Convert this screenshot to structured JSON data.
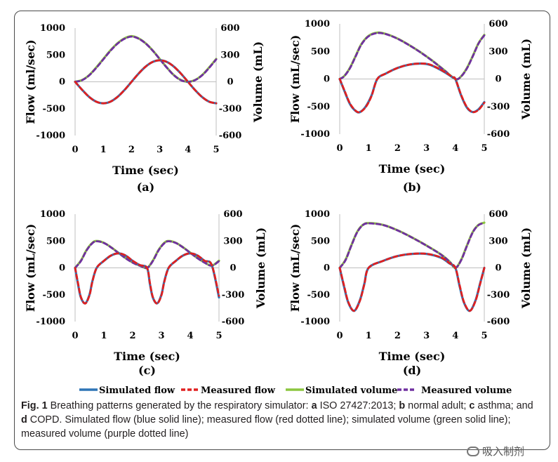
{
  "legend": [
    {
      "name": "Simulated flow",
      "color": "#2e75b6",
      "dash": false
    },
    {
      "name": "Measured flow",
      "color": "#e02020",
      "dash": true
    },
    {
      "name": "Simulated volume",
      "color": "#8cc63f",
      "dash": false
    },
    {
      "name": "Measured volume",
      "color": "#7030a0",
      "dash": true
    }
  ],
  "caption": {
    "fig": "Fig. 1",
    "t1": "Breathing patterns generated by the respiratory simulator: ",
    "a": "a",
    "t2": " ISO 27427:2013; ",
    "b": "b",
    "t3": " normal adult; ",
    "c": "c",
    "t4": " asthma; and ",
    "d": "d",
    "t5": " COPD. Simulated flow (blue solid line); measured flow (red dotted line); simulated volume (green solid line); measured volume (purple dotted line)"
  },
  "watermark": "吸入制剂",
  "chart_data": [
    {
      "type": "line",
      "panel": "(a)",
      "xlabel": "Time (sec)",
      "ylabel": "Flow (ml/sec)",
      "y2label": "Volume (mL)",
      "xlim": [
        0,
        5
      ],
      "ylim": [
        -1000,
        1000
      ],
      "y2lim": [
        -600,
        600
      ],
      "xticks": [
        "0",
        "1",
        "2",
        "3",
        "4",
        "5"
      ],
      "yticks": [
        "-1000",
        "-500",
        "0",
        "500",
        "1000"
      ],
      "y2ticks": [
        "-600",
        "-300",
        "0",
        "300",
        "600"
      ],
      "series": [
        {
          "name": "Simulated flow",
          "axis": "y",
          "x": [
            0,
            0.25,
            0.5,
            0.75,
            1,
            1.25,
            1.5,
            1.75,
            2,
            2.25,
            2.5,
            2.75,
            3,
            3.25,
            3.5,
            3.75,
            4,
            4.25,
            4.5,
            4.75,
            5
          ],
          "values": [
            0,
            -150,
            -283,
            -370,
            -400,
            -370,
            -283,
            -153,
            0,
            153,
            283,
            370,
            400,
            370,
            283,
            153,
            0,
            -153,
            -283,
            -370,
            -400
          ]
        },
        {
          "name": "Measured flow",
          "axis": "y",
          "x": [
            0,
            0.25,
            0.5,
            0.75,
            1,
            1.25,
            1.5,
            1.75,
            2,
            2.25,
            2.5,
            2.75,
            3,
            3.25,
            3.5,
            3.75,
            4,
            4.25,
            4.5,
            4.75,
            5
          ],
          "values": [
            0,
            -150,
            -283,
            -370,
            -400,
            -370,
            -283,
            -153,
            0,
            153,
            283,
            370,
            400,
            370,
            283,
            153,
            0,
            -153,
            -283,
            -370,
            -400
          ]
        },
        {
          "name": "Simulated volume",
          "axis": "y2",
          "x": [
            0,
            0.25,
            0.5,
            0.75,
            1,
            1.25,
            1.5,
            1.75,
            2,
            2.25,
            2.5,
            2.75,
            3,
            3.25,
            3.5,
            3.75,
            4,
            4.25,
            4.5,
            4.75,
            5
          ],
          "values": [
            0,
            20,
            75,
            160,
            255,
            350,
            430,
            485,
            510,
            485,
            430,
            350,
            255,
            160,
            75,
            20,
            0,
            20,
            75,
            160,
            255
          ]
        },
        {
          "name": "Measured volume",
          "axis": "y2",
          "x": [
            0,
            0.25,
            0.5,
            0.75,
            1,
            1.25,
            1.5,
            1.75,
            2,
            2.25,
            2.5,
            2.75,
            3,
            3.25,
            3.5,
            3.75,
            4,
            4.25,
            4.5,
            4.75,
            5
          ],
          "values": [
            0,
            18,
            72,
            155,
            250,
            345,
            425,
            480,
            505,
            482,
            428,
            348,
            253,
            158,
            73,
            18,
            0,
            18,
            72,
            155,
            250
          ]
        }
      ]
    },
    {
      "type": "line",
      "panel": "(b)",
      "xlabel": "Time (sec)",
      "ylabel": "Flow (mL/sec)",
      "y2label": "Volume (mL)",
      "xlim": [
        0,
        5
      ],
      "ylim": [
        -1000,
        1000
      ],
      "y2lim": [
        -600,
        600
      ],
      "xticks": [
        "0",
        "1",
        "2",
        "3",
        "4",
        "5"
      ],
      "yticks": [
        "-1000",
        "-500",
        "0",
        "500",
        "1000"
      ],
      "y2ticks": [
        "-600",
        "-300",
        "0",
        "300",
        "600"
      ],
      "series": [
        {
          "name": "Simulated flow",
          "axis": "y",
          "x": [
            0,
            0.15,
            0.35,
            0.55,
            0.7,
            0.9,
            1.1,
            1.3,
            1.6,
            2,
            2.4,
            2.8,
            3.1,
            3.4,
            3.7,
            3.9,
            4,
            4.2,
            4.4,
            4.6,
            4.8,
            5
          ],
          "values": [
            0,
            -200,
            -450,
            -580,
            -600,
            -500,
            -300,
            0,
            100,
            200,
            260,
            280,
            260,
            190,
            100,
            30,
            0,
            -300,
            -520,
            -600,
            -550,
            -420
          ]
        },
        {
          "name": "Measured flow",
          "axis": "y",
          "x": [
            0,
            0.15,
            0.35,
            0.55,
            0.7,
            0.9,
            1.1,
            1.3,
            1.6,
            2,
            2.4,
            2.8,
            3.1,
            3.4,
            3.7,
            3.9,
            4,
            4.2,
            4.4,
            4.6,
            4.8,
            5
          ],
          "values": [
            0,
            -190,
            -440,
            -575,
            -600,
            -510,
            -310,
            0,
            100,
            200,
            260,
            280,
            265,
            195,
            105,
            35,
            0,
            -290,
            -510,
            -600,
            -560,
            -430
          ]
        },
        {
          "name": "Simulated volume",
          "axis": "y2",
          "x": [
            0,
            0.15,
            0.35,
            0.55,
            0.75,
            1,
            1.3,
            1.6,
            2,
            2.4,
            2.8,
            3.2,
            3.6,
            4,
            4.2,
            4.4,
            4.6,
            4.8,
            5
          ],
          "values": [
            0,
            30,
            120,
            250,
            380,
            470,
            505,
            490,
            440,
            370,
            290,
            200,
            100,
            0,
            30,
            120,
            250,
            390,
            480
          ]
        },
        {
          "name": "Measured volume",
          "axis": "y2",
          "x": [
            0,
            0.15,
            0.35,
            0.55,
            0.75,
            1,
            1.3,
            1.6,
            2,
            2.4,
            2.8,
            3.2,
            3.6,
            4,
            4.2,
            4.4,
            4.6,
            4.8,
            5
          ],
          "values": [
            0,
            28,
            115,
            245,
            375,
            465,
            500,
            488,
            438,
            368,
            288,
            198,
            98,
            0,
            28,
            115,
            245,
            385,
            475
          ]
        }
      ]
    },
    {
      "type": "line",
      "panel": "(c)",
      "xlabel": "Time (sec)",
      "ylabel": "Flow (mL/sec)",
      "y2label": "Volume (mL)",
      "xlim": [
        0,
        5
      ],
      "ylim": [
        -1000,
        1000
      ],
      "y2lim": [
        -600,
        600
      ],
      "xticks": [
        "0",
        "1",
        "2",
        "3",
        "4",
        "5"
      ],
      "yticks": [
        "-1000",
        "-500",
        "0",
        "500",
        "1000"
      ],
      "y2ticks": [
        "-600",
        "-300",
        "0",
        "300",
        "600"
      ],
      "series": [
        {
          "name": "Simulated flow",
          "axis": "y",
          "x": [
            0,
            0.1,
            0.2,
            0.35,
            0.5,
            0.6,
            0.75,
            1,
            1.25,
            1.5,
            1.75,
            2,
            2.25,
            2.5,
            2.6,
            2.7,
            2.85,
            3,
            3.1,
            3.25,
            3.5,
            3.75,
            4,
            4.25,
            4.5,
            4.75,
            5
          ],
          "values": [
            0,
            -300,
            -550,
            -660,
            -500,
            -250,
            0,
            130,
            230,
            270,
            230,
            130,
            50,
            0,
            -300,
            -550,
            -660,
            -500,
            -250,
            0,
            130,
            230,
            270,
            230,
            130,
            50,
            -550
          ]
        },
        {
          "name": "Measured flow",
          "axis": "y",
          "x": [
            0,
            0.1,
            0.2,
            0.35,
            0.5,
            0.6,
            0.75,
            1,
            1.25,
            1.5,
            1.75,
            2,
            2.25,
            2.5,
            2.6,
            2.7,
            2.85,
            3,
            3.1,
            3.25,
            3.5,
            3.75,
            4,
            4.25,
            4.5,
            4.75,
            5
          ],
          "values": [
            0,
            -280,
            -540,
            -665,
            -510,
            -260,
            0,
            130,
            230,
            270,
            232,
            132,
            52,
            0,
            -280,
            -540,
            -665,
            -510,
            -260,
            0,
            130,
            230,
            270,
            232,
            132,
            52,
            -520
          ]
        },
        {
          "name": "Simulated volume",
          "axis": "y2",
          "x": [
            0,
            0.2,
            0.4,
            0.6,
            0.75,
            1,
            1.25,
            1.5,
            1.75,
            2,
            2.25,
            2.5,
            2.7,
            2.9,
            3.1,
            3.25,
            3.5,
            3.75,
            4,
            4.25,
            4.5,
            4.75,
            5
          ],
          "values": [
            0,
            80,
            200,
            280,
            300,
            280,
            230,
            170,
            110,
            60,
            25,
            0,
            80,
            200,
            280,
            300,
            280,
            230,
            170,
            110,
            60,
            25,
            80
          ]
        },
        {
          "name": "Measured volume",
          "axis": "y2",
          "x": [
            0,
            0.2,
            0.4,
            0.6,
            0.75,
            1,
            1.25,
            1.5,
            1.75,
            2,
            2.25,
            2.5,
            2.7,
            2.9,
            3.1,
            3.25,
            3.5,
            3.75,
            4,
            4.25,
            4.5,
            4.75,
            5
          ],
          "values": [
            0,
            75,
            195,
            275,
            297,
            278,
            228,
            168,
            108,
            58,
            23,
            0,
            75,
            195,
            275,
            297,
            278,
            228,
            168,
            108,
            58,
            23,
            75
          ]
        }
      ]
    },
    {
      "type": "line",
      "panel": "(d)",
      "xlabel": "Time (sec)",
      "ylabel": "Flow (mL/sec)",
      "y2label": "Volume (mL)",
      "xlim": [
        0,
        5
      ],
      "ylim": [
        -1000,
        1000
      ],
      "y2lim": [
        -600,
        600
      ],
      "xticks": [
        "0",
        "1",
        "2",
        "3",
        "4",
        "5"
      ],
      "yticks": [
        "-1000",
        "-500",
        "0",
        "500",
        "1000"
      ],
      "y2ticks": [
        "-600",
        "-300",
        "0",
        "300",
        "600"
      ],
      "series": [
        {
          "name": "Simulated flow",
          "axis": "y",
          "x": [
            0,
            0.15,
            0.3,
            0.5,
            0.7,
            0.85,
            1,
            1.5,
            2,
            2.5,
            3,
            3.5,
            3.8,
            4,
            4.15,
            4.3,
            4.5,
            4.7,
            4.85,
            5
          ],
          "values": [
            0,
            -350,
            -650,
            -800,
            -600,
            -300,
            0,
            130,
            220,
            260,
            260,
            190,
            80,
            0,
            -350,
            -650,
            -800,
            -600,
            -300,
            0
          ]
        },
        {
          "name": "Measured flow",
          "axis": "y",
          "x": [
            0,
            0.15,
            0.3,
            0.5,
            0.7,
            0.85,
            1,
            1.5,
            2,
            2.5,
            3,
            3.5,
            3.8,
            4,
            4.15,
            4.3,
            4.5,
            4.7,
            4.85,
            5
          ],
          "values": [
            0,
            -330,
            -640,
            -800,
            -610,
            -310,
            0,
            130,
            220,
            260,
            262,
            195,
            85,
            0,
            -330,
            -640,
            -800,
            -610,
            -310,
            0
          ]
        },
        {
          "name": "Simulated volume",
          "axis": "y2",
          "x": [
            0,
            0.2,
            0.4,
            0.6,
            0.8,
            1,
            1.5,
            2,
            2.5,
            3,
            3.5,
            3.8,
            4,
            4.2,
            4.4,
            4.6,
            4.8,
            5
          ],
          "values": [
            0,
            90,
            250,
            400,
            480,
            500,
            480,
            420,
            340,
            250,
            150,
            70,
            0,
            90,
            250,
            400,
            480,
            505
          ]
        },
        {
          "name": "Measured volume",
          "axis": "y2",
          "x": [
            0,
            0.2,
            0.4,
            0.6,
            0.8,
            1,
            1.5,
            2,
            2.5,
            3,
            3.5,
            3.8,
            4,
            4.2,
            4.4,
            4.6,
            4.8,
            5
          ],
          "values": [
            0,
            85,
            245,
            395,
            478,
            497,
            478,
            418,
            338,
            248,
            148,
            68,
            0,
            85,
            245,
            395,
            478,
            500
          ]
        }
      ]
    }
  ]
}
